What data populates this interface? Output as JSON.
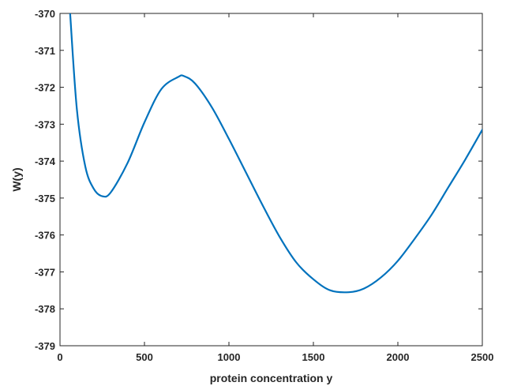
{
  "chart_data": {
    "type": "line",
    "title": "",
    "xlabel": "protein concentration y",
    "ylabel": "W(y)",
    "xlim": [
      0,
      2500
    ],
    "ylim": [
      -379,
      -370
    ],
    "x_ticks": [
      0,
      500,
      1000,
      1500,
      2000,
      2500
    ],
    "y_ticks": [
      -370,
      -371,
      -372,
      -373,
      -374,
      -375,
      -376,
      -377,
      -378,
      -379
    ],
    "grid": false,
    "series": [
      {
        "color": "#0072bd",
        "x": [
          60,
          100,
          150,
          200,
          250,
          300,
          400,
          500,
          600,
          700,
          735,
          800,
          900,
          1000,
          1100,
          1200,
          1300,
          1400,
          1500,
          1600,
          1710,
          1800,
          1900,
          2000,
          2100,
          2200,
          2300,
          2400,
          2500
        ],
        "y": [
          -370.0,
          -372.6,
          -374.15,
          -374.75,
          -374.95,
          -374.85,
          -374.05,
          -372.95,
          -372.05,
          -371.72,
          -371.7,
          -371.9,
          -372.55,
          -373.4,
          -374.3,
          -375.2,
          -376.05,
          -376.75,
          -377.2,
          -377.5,
          -377.55,
          -377.45,
          -377.15,
          -376.7,
          -376.1,
          -375.45,
          -374.7,
          -373.95,
          -373.15
        ]
      }
    ]
  }
}
